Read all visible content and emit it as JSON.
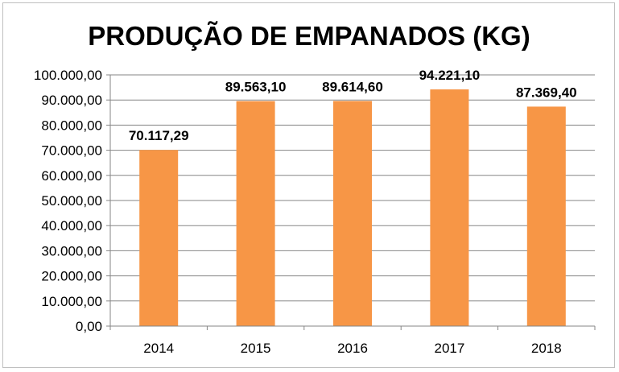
{
  "chart_data": {
    "type": "bar",
    "title": "PRODUÇÃO DE EMPANADOS (KG)",
    "xlabel": "",
    "ylabel": "",
    "categories": [
      "2014",
      "2015",
      "2016",
      "2017",
      "2018"
    ],
    "values": [
      70117.29,
      89563.1,
      89614.6,
      94221.1,
      87369.4
    ],
    "data_labels": [
      "70.117,29",
      "89.563,10",
      "89.614,60",
      "94.221,10",
      "87.369,40"
    ],
    "ylim": [
      0,
      100000
    ],
    "y_ticks": [
      0,
      10000,
      20000,
      30000,
      40000,
      50000,
      60000,
      70000,
      80000,
      90000,
      100000
    ],
    "y_tick_labels": [
      "0,00",
      "10.000,00",
      "20.000,00",
      "30.000,00",
      "40.000,00",
      "50.000,00",
      "60.000,00",
      "70.000,00",
      "80.000,00",
      "90.000,00",
      "100.000,00"
    ],
    "grid": true,
    "legend": "none",
    "bar_color": "#F79646",
    "grid_color": "#868686"
  }
}
